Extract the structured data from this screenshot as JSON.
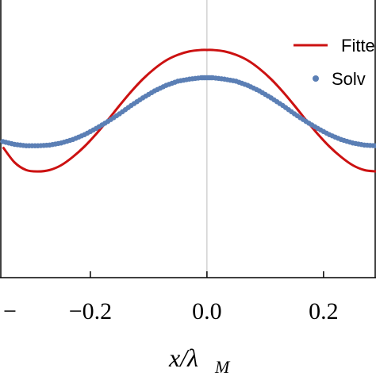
{
  "chart_data": {
    "type": "line",
    "xlabel_main": "x/λ",
    "xlabel_sub": "M",
    "xlim": [
      -0.355,
      0.29
    ],
    "ylim": [
      -1.0,
      1.0
    ],
    "x_ticks": [
      {
        "value": -0.4,
        "label": "−"
      },
      {
        "value": -0.2,
        "label": "−0.2"
      },
      {
        "value": 0.0,
        "label": "0.0"
      },
      {
        "value": 0.2,
        "label": "0.2"
      }
    ],
    "legend": {
      "placement": "top-right",
      "entries": [
        {
          "label": "Fitte",
          "marker": "line",
          "color": "#cc1111"
        },
        {
          "label": "Solv",
          "marker": "dot",
          "color": "#5b7fb5"
        }
      ]
    },
    "series": [
      {
        "name": "Fitte",
        "style": "line",
        "color": "#cc1111",
        "x": [
          -0.35,
          -0.33,
          -0.31,
          -0.29,
          -0.27,
          -0.25,
          -0.23,
          -0.21,
          -0.19,
          -0.17,
          -0.15,
          -0.13,
          -0.11,
          -0.09,
          -0.07,
          -0.05,
          -0.03,
          -0.01,
          0.0,
          0.01,
          0.03,
          0.05,
          0.07,
          0.09,
          0.11,
          0.13,
          0.15,
          0.17,
          0.19,
          0.21,
          0.23,
          0.25,
          0.27,
          0.29
        ],
        "y": [
          -0.06,
          -0.17,
          -0.225,
          -0.235,
          -0.225,
          -0.19,
          -0.13,
          -0.055,
          0.035,
          0.135,
          0.24,
          0.34,
          0.43,
          0.505,
          0.565,
          0.605,
          0.63,
          0.64,
          0.64,
          0.64,
          0.63,
          0.605,
          0.565,
          0.505,
          0.43,
          0.34,
          0.24,
          0.135,
          0.035,
          -0.055,
          -0.13,
          -0.19,
          -0.225,
          -0.235
        ]
      },
      {
        "name": "Solv",
        "style": "points",
        "color": "#5b7fb5",
        "x": [
          -0.35,
          -0.33,
          -0.31,
          -0.29,
          -0.27,
          -0.25,
          -0.23,
          -0.21,
          -0.19,
          -0.17,
          -0.15,
          -0.13,
          -0.11,
          -0.09,
          -0.07,
          -0.05,
          -0.03,
          -0.01,
          0.0,
          0.01,
          0.03,
          0.05,
          0.07,
          0.09,
          0.11,
          0.13,
          0.15,
          0.17,
          0.19,
          0.21,
          0.23,
          0.25,
          0.27,
          0.29
        ],
        "y": [
          -0.02,
          -0.04,
          -0.05,
          -0.05,
          -0.045,
          -0.03,
          -0.005,
          0.03,
          0.075,
          0.125,
          0.18,
          0.24,
          0.295,
          0.345,
          0.385,
          0.415,
          0.43,
          0.44,
          0.44,
          0.44,
          0.43,
          0.415,
          0.385,
          0.345,
          0.295,
          0.24,
          0.18,
          0.125,
          0.075,
          0.03,
          -0.005,
          -0.03,
          -0.045,
          -0.05
        ]
      }
    ]
  }
}
